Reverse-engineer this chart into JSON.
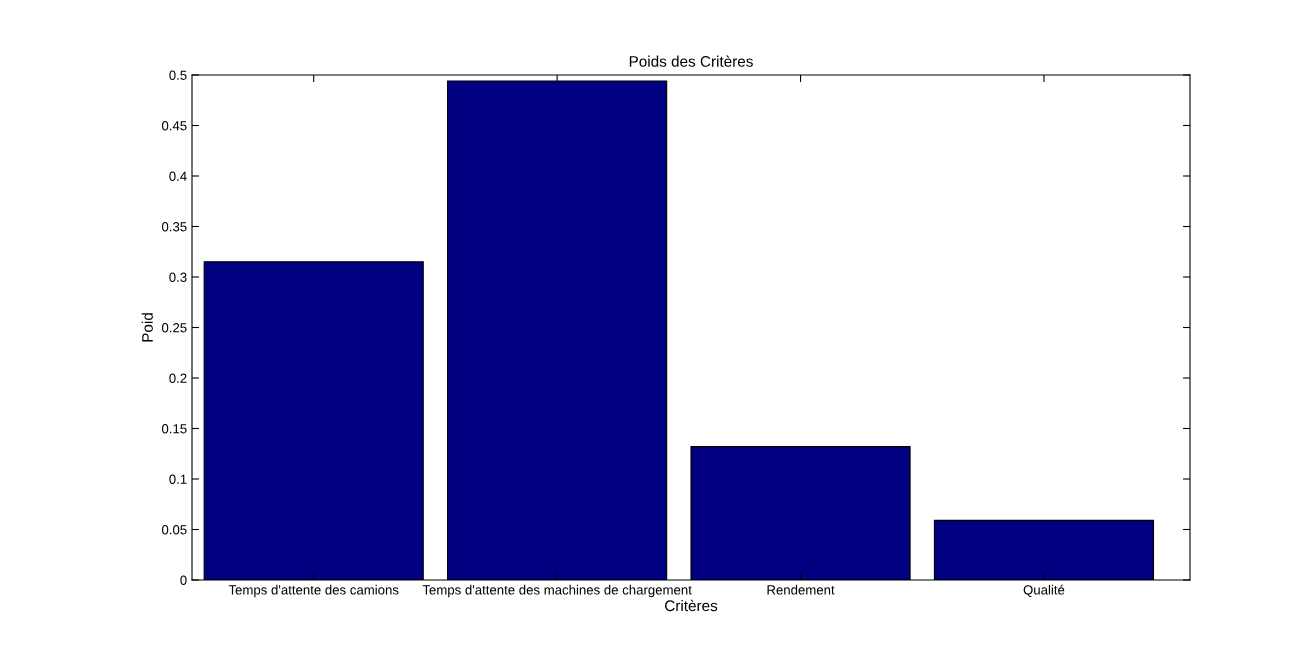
{
  "chart_data": {
    "type": "bar",
    "title": "Poids des Critères",
    "xlabel": "Critères",
    "ylabel": "Poid",
    "categories": [
      "Temps d'attente des camions",
      "Temps d'attente des machines de chargement",
      "Rendement",
      "Qualité"
    ],
    "values": [
      0.315,
      0.494,
      0.132,
      0.059
    ],
    "color": "#000080",
    "ylim": [
      0,
      0.5
    ],
    "yticks": [
      0,
      0.05,
      0.1,
      0.15,
      0.2,
      0.25,
      0.3,
      0.35,
      0.4,
      0.45,
      0.5
    ],
    "grid": false
  }
}
